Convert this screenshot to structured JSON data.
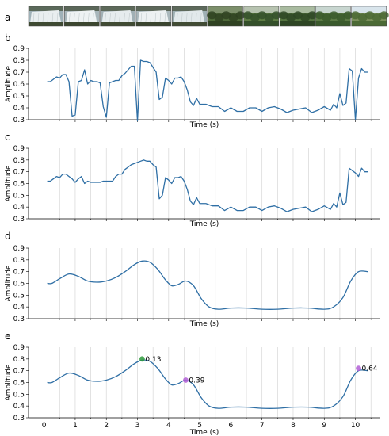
{
  "panel_labels": [
    "a",
    "b",
    "c",
    "d",
    "e"
  ],
  "thumbnails": [
    {
      "scene": "waterfall",
      "sky": "#9fb1b8",
      "main": "#e9eef0",
      "ground": "#3e4a32"
    },
    {
      "scene": "waterfall",
      "sky": "#a8b6bb",
      "main": "#eef2f3",
      "ground": "#3b462f"
    },
    {
      "scene": "waterfall",
      "sky": "#a1b0b5",
      "main": "#e6ecee",
      "ground": "#404b33"
    },
    {
      "scene": "waterfall",
      "sky": "#aab8bc",
      "main": "#edf1f2",
      "ground": "#3a452f"
    },
    {
      "scene": "waterfall",
      "sky": "#9fb0b4",
      "main": "#e2e9eb",
      "ground": "#414c34"
    },
    {
      "scene": "forest",
      "sky": "#7c8f6b",
      "main": "#4f6a3a",
      "ground": "#2f4222"
    },
    {
      "scene": "forest",
      "sky": "#b7c3b0",
      "main": "#5e7c44",
      "ground": "#34502a"
    },
    {
      "scene": "forest",
      "sky": "#a9bba0",
      "main": "#557440",
      "ground": "#2e4624"
    },
    {
      "scene": "forest",
      "sky": "#c8d6d0",
      "main": "#5c7a45",
      "ground": "#3a5a2c"
    },
    {
      "scene": "forest",
      "sky": "#d9e5ec",
      "main": "#7a8f5a",
      "ground": "#4b6a35"
    }
  ],
  "chart_data": [
    {
      "panel": "b",
      "type": "line",
      "xlabel": "Time (s)",
      "ylabel": "Amplitude",
      "xlim": [
        -0.5,
        10.8
      ],
      "ylim": [
        0.3,
        0.9
      ],
      "xticks": [
        0,
        1,
        2,
        3,
        4,
        5,
        6,
        7,
        8,
        9,
        10
      ],
      "show_x_tick_labels": false,
      "yticks": [
        0.3,
        0.4,
        0.5,
        0.6,
        0.7,
        0.8,
        0.9
      ],
      "grid": true,
      "series": [
        {
          "color": "#2f6fa5",
          "x": [
            0.1,
            0.2,
            0.3,
            0.4,
            0.5,
            0.6,
            0.7,
            0.8,
            0.9,
            1.0,
            1.1,
            1.2,
            1.3,
            1.4,
            1.5,
            1.6,
            1.7,
            1.8,
            1.9,
            2.0,
            2.1,
            2.2,
            2.3,
            2.4,
            2.5,
            2.6,
            2.7,
            2.8,
            2.9,
            3.0,
            3.1,
            3.2,
            3.3,
            3.4,
            3.5,
            3.6,
            3.7,
            3.8,
            3.9,
            4.0,
            4.1,
            4.2,
            4.3,
            4.4,
            4.5,
            4.6,
            4.7,
            4.8,
            4.9,
            5.0,
            5.2,
            5.4,
            5.6,
            5.8,
            6.0,
            6.2,
            6.4,
            6.6,
            6.8,
            7.0,
            7.2,
            7.4,
            7.6,
            7.8,
            8.0,
            8.2,
            8.4,
            8.6,
            8.8,
            9.0,
            9.2,
            9.3,
            9.4,
            9.5,
            9.6,
            9.7,
            9.8,
            9.9,
            10.0,
            10.1,
            10.2,
            10.3,
            10.4
          ],
          "y": [
            0.62,
            0.62,
            0.64,
            0.66,
            0.65,
            0.68,
            0.68,
            0.62,
            0.33,
            0.34,
            0.62,
            0.63,
            0.72,
            0.6,
            0.63,
            0.62,
            0.62,
            0.61,
            0.41,
            0.32,
            0.61,
            0.62,
            0.63,
            0.63,
            0.67,
            0.69,
            0.72,
            0.75,
            0.75,
            0.29,
            0.8,
            0.79,
            0.79,
            0.78,
            0.74,
            0.7,
            0.47,
            0.49,
            0.65,
            0.63,
            0.6,
            0.65,
            0.65,
            0.66,
            0.62,
            0.55,
            0.45,
            0.42,
            0.48,
            0.43,
            0.43,
            0.41,
            0.41,
            0.37,
            0.4,
            0.37,
            0.37,
            0.4,
            0.4,
            0.37,
            0.4,
            0.41,
            0.39,
            0.36,
            0.38,
            0.39,
            0.4,
            0.36,
            0.38,
            0.41,
            0.38,
            0.43,
            0.4,
            0.52,
            0.42,
            0.44,
            0.73,
            0.71,
            0.3,
            0.65,
            0.73,
            0.7,
            0.7
          ]
        }
      ]
    },
    {
      "panel": "c",
      "type": "line",
      "xlabel": "Time (s)",
      "ylabel": "Amplitude",
      "xlim": [
        -0.5,
        10.8
      ],
      "ylim": [
        0.3,
        0.9
      ],
      "xticks": [
        0,
        1,
        2,
        3,
        4,
        5,
        6,
        7,
        8,
        9,
        10
      ],
      "show_x_tick_labels": false,
      "yticks": [
        0.3,
        0.4,
        0.5,
        0.6,
        0.7,
        0.8,
        0.9
      ],
      "grid": true,
      "series": [
        {
          "color": "#2f6fa5",
          "x": [
            0.1,
            0.2,
            0.3,
            0.4,
            0.5,
            0.6,
            0.7,
            0.8,
            0.9,
            1.0,
            1.1,
            1.2,
            1.3,
            1.4,
            1.5,
            1.6,
            1.7,
            1.8,
            1.9,
            2.0,
            2.1,
            2.2,
            2.3,
            2.4,
            2.5,
            2.6,
            2.7,
            2.8,
            2.9,
            3.0,
            3.1,
            3.2,
            3.3,
            3.4,
            3.5,
            3.6,
            3.7,
            3.8,
            3.9,
            4.0,
            4.1,
            4.2,
            4.3,
            4.4,
            4.5,
            4.6,
            4.7,
            4.8,
            4.9,
            5.0,
            5.2,
            5.4,
            5.6,
            5.8,
            6.0,
            6.2,
            6.4,
            6.6,
            6.8,
            7.0,
            7.2,
            7.4,
            7.6,
            7.8,
            8.0,
            8.2,
            8.4,
            8.6,
            8.8,
            9.0,
            9.2,
            9.3,
            9.4,
            9.5,
            9.6,
            9.7,
            9.8,
            9.9,
            10.0,
            10.1,
            10.2,
            10.3,
            10.4
          ],
          "y": [
            0.62,
            0.62,
            0.64,
            0.66,
            0.65,
            0.68,
            0.68,
            0.66,
            0.64,
            0.61,
            0.64,
            0.66,
            0.6,
            0.62,
            0.61,
            0.61,
            0.61,
            0.61,
            0.62,
            0.62,
            0.62,
            0.62,
            0.66,
            0.68,
            0.68,
            0.72,
            0.74,
            0.76,
            0.77,
            0.78,
            0.79,
            0.8,
            0.79,
            0.79,
            0.76,
            0.74,
            0.47,
            0.5,
            0.65,
            0.63,
            0.6,
            0.65,
            0.65,
            0.66,
            0.62,
            0.55,
            0.45,
            0.42,
            0.48,
            0.43,
            0.43,
            0.41,
            0.41,
            0.37,
            0.4,
            0.37,
            0.37,
            0.4,
            0.4,
            0.37,
            0.4,
            0.41,
            0.39,
            0.36,
            0.38,
            0.39,
            0.4,
            0.36,
            0.38,
            0.41,
            0.38,
            0.43,
            0.4,
            0.52,
            0.42,
            0.44,
            0.73,
            0.71,
            0.69,
            0.66,
            0.73,
            0.7,
            0.7
          ]
        }
      ]
    },
    {
      "panel": "d",
      "type": "line",
      "xlabel": "Time (s)",
      "ylabel": "Amplitude",
      "xlim": [
        -0.5,
        10.8
      ],
      "ylim": [
        0.3,
        0.9
      ],
      "xticks": [
        0,
        1,
        2,
        3,
        4,
        5,
        6,
        7,
        8,
        9,
        10
      ],
      "show_x_tick_labels": false,
      "yticks": [
        0.3,
        0.4,
        0.5,
        0.6,
        0.7,
        0.8,
        0.9
      ],
      "grid": true,
      "series": [
        {
          "color": "#2f6fa5",
          "smooth": true,
          "x": [
            0.1,
            0.25,
            0.5,
            0.8,
            1.1,
            1.4,
            1.7,
            2.0,
            2.3,
            2.6,
            2.9,
            3.15,
            3.4,
            3.65,
            3.9,
            4.1,
            4.3,
            4.55,
            4.8,
            5.05,
            5.3,
            5.6,
            6.0,
            6.5,
            7.0,
            7.5,
            8.0,
            8.5,
            9.0,
            9.3,
            9.6,
            9.85,
            10.1,
            10.4
          ],
          "y": [
            0.6,
            0.6,
            0.64,
            0.68,
            0.66,
            0.62,
            0.61,
            0.62,
            0.65,
            0.7,
            0.76,
            0.79,
            0.78,
            0.72,
            0.63,
            0.58,
            0.59,
            0.62,
            0.58,
            0.47,
            0.4,
            0.38,
            0.39,
            0.39,
            0.38,
            0.38,
            0.39,
            0.39,
            0.38,
            0.4,
            0.48,
            0.62,
            0.7,
            0.7
          ]
        }
      ]
    },
    {
      "panel": "e",
      "type": "line",
      "xlabel": "Time (s)",
      "ylabel": "Amplitude",
      "xlim": [
        -0.5,
        10.8
      ],
      "ylim": [
        0.3,
        0.9
      ],
      "xticks": [
        0,
        1,
        2,
        3,
        4,
        5,
        6,
        7,
        8,
        9,
        10
      ],
      "show_x_tick_labels": true,
      "yticks": [
        0.3,
        0.4,
        0.5,
        0.6,
        0.7,
        0.8,
        0.9
      ],
      "grid": true,
      "series": [
        {
          "color": "#2f6fa5",
          "smooth": true,
          "x": [
            0.1,
            0.25,
            0.5,
            0.8,
            1.1,
            1.4,
            1.7,
            2.0,
            2.3,
            2.6,
            2.9,
            3.15,
            3.4,
            3.65,
            3.9,
            4.1,
            4.3,
            4.55,
            4.8,
            5.05,
            5.3,
            5.6,
            6.0,
            6.5,
            7.0,
            7.5,
            8.0,
            8.5,
            9.0,
            9.3,
            9.6,
            9.85,
            10.1,
            10.4
          ],
          "y": [
            0.6,
            0.6,
            0.64,
            0.68,
            0.66,
            0.62,
            0.61,
            0.62,
            0.65,
            0.7,
            0.76,
            0.79,
            0.78,
            0.72,
            0.63,
            0.58,
            0.59,
            0.62,
            0.58,
            0.47,
            0.4,
            0.38,
            0.39,
            0.39,
            0.38,
            0.38,
            0.39,
            0.39,
            0.38,
            0.4,
            0.48,
            0.62,
            0.7,
            0.7
          ]
        }
      ],
      "annotations": [
        {
          "x": 3.15,
          "y": 0.8,
          "label": "0.13",
          "color": "#2e9a3c"
        },
        {
          "x": 4.55,
          "y": 0.62,
          "label": "0.39",
          "color": "#b25fd6"
        },
        {
          "x": 10.1,
          "y": 0.72,
          "label": "0.64",
          "color": "#b25fd6"
        }
      ]
    }
  ]
}
